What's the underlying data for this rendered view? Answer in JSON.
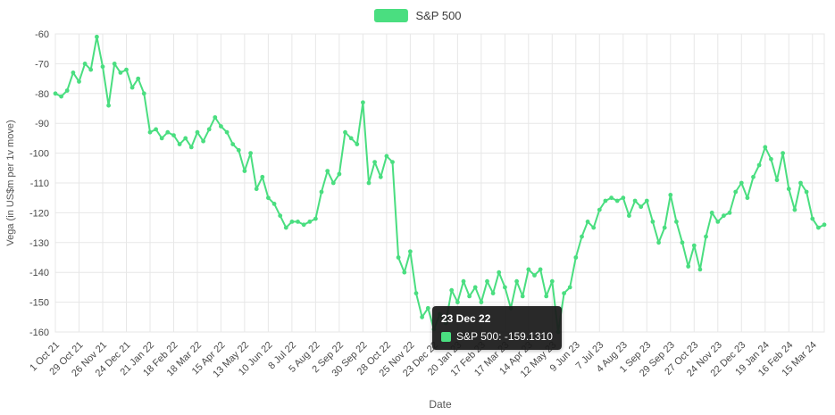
{
  "chart_data": {
    "type": "line",
    "title": "",
    "xlabel": "Date",
    "ylabel": "Vega (in US$m per 1v move)",
    "legend": [
      "S&P 500"
    ],
    "line_color": "#4ade80",
    "grid_color": "#e7e7e7",
    "axis_text_color": "#4a4a4a",
    "ylim": [
      -160,
      -60
    ],
    "yticks": [
      -60,
      -70,
      -80,
      -90,
      -100,
      -110,
      -120,
      -130,
      -140,
      -150,
      -160
    ],
    "x_tick_every": 4,
    "x_tick_labels": [
      "1 Oct 21",
      "29 Oct 21",
      "26 Nov 21",
      "24 Dec 21",
      "21 Jan 22",
      "18 Feb 22",
      "18 Mar 22",
      "15 Apr 22",
      "13 May 22",
      "10 Jun 22",
      "8 Jul 22",
      "5 Aug 22",
      "2 Sep 22",
      "30 Sep 22",
      "28 Oct 22",
      "25 Nov 22",
      "23 Dec 22",
      "20 Jan 23",
      "17 Feb 23",
      "17 Mar 23",
      "14 Apr 23",
      "12 May 23",
      "9 Jun 23",
      "7 Jul 23",
      "4 Aug 23",
      "1 Sep 23",
      "29 Sep 23",
      "27 Oct 23",
      "24 Nov 23",
      "22 Dec 23",
      "19 Jan 24",
      "16 Feb 24",
      "15 Mar 24"
    ],
    "values": [
      -80,
      -81,
      -79,
      -73,
      -76,
      -70,
      -72,
      -61,
      -71,
      -84,
      -70,
      -73,
      -72,
      -78,
      -75,
      -80,
      -93,
      -92,
      -95,
      -93,
      -94,
      -97,
      -95,
      -98,
      -93,
      -96,
      -92,
      -88,
      -91,
      -93,
      -97,
      -99,
      -106,
      -100,
      -112,
      -108,
      -115,
      -117,
      -121,
      -125,
      -123,
      -123,
      -124,
      -123,
      -122,
      -113,
      -106,
      -110,
      -107,
      -93,
      -95,
      -97,
      -83,
      -110,
      -103,
      -108,
      -101,
      -103,
      -135,
      -140,
      -133,
      -147,
      -155,
      -152,
      -159.131,
      -154,
      -157,
      -146,
      -150,
      -143,
      -148,
      -145,
      -150,
      -143,
      -147,
      -140,
      -145,
      -152,
      -143,
      -148,
      -139,
      -141,
      -139,
      -148,
      -143,
      -160,
      -147,
      -145,
      -135,
      -128,
      -123,
      -125,
      -119,
      -116,
      -115,
      -116,
      -115,
      -121,
      -116,
      -118,
      -116,
      -123,
      -130,
      -125,
      -114,
      -123,
      -130,
      -138,
      -131,
      -139,
      -128,
      -120,
      -123,
      -121,
      -120,
      -113,
      -110,
      -115,
      -108,
      -104,
      -98,
      -102,
      -109,
      -100,
      -112,
      -119,
      -110,
      -113,
      -122,
      -125,
      -124
    ]
  },
  "tooltip": {
    "title": "23 Dec 22",
    "series_label": "S&P 500",
    "value_text": "S&P 500: -159.1310",
    "point_index": 64
  }
}
